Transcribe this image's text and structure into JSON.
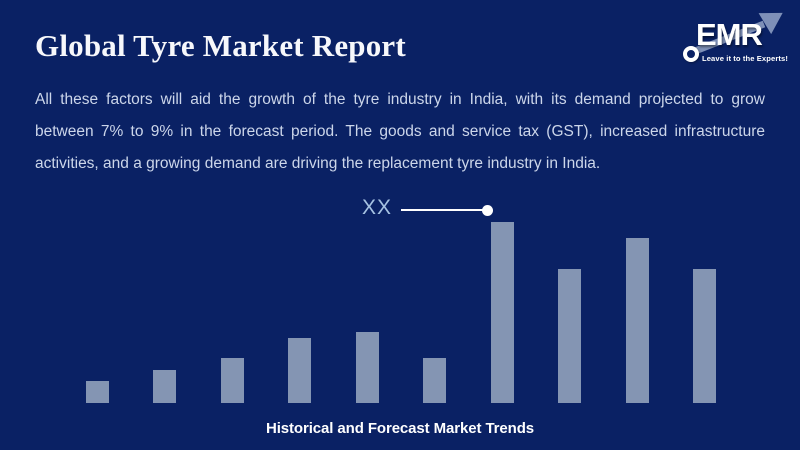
{
  "page": {
    "background_color": "#0a2164",
    "title": "Global Tyre Market Report",
    "paragraph_lines": [
      "All these factors will aid the growth of the tyre industry in India, with its demand projected to grow",
      "between 7% to 9% in the forecast period. The goods and service tax (GST), increased infrastructure",
      "activities, and a growing demand are driving the replacement tyre industry in India."
    ],
    "text_color": "#ccd6ea",
    "title_color": "#f7f8fb"
  },
  "logo": {
    "name": "EMR",
    "tagline": "Leave it to the Experts!",
    "arrow_color": "#7e90b8",
    "text_color": "#ffffff"
  },
  "chart_data": {
    "type": "bar",
    "title": "Historical and Forecast Market Trends",
    "xlabel": "",
    "ylabel": "",
    "categories": [
      "",
      "",
      "",
      "",
      "",
      "",
      "",
      "",
      "",
      ""
    ],
    "values": [
      12,
      18,
      25,
      36,
      39,
      25,
      100,
      74,
      91,
      74
    ],
    "ylim": [
      0,
      100
    ],
    "grid": false,
    "axes_visible": false,
    "legend": "none",
    "bar_color": "#8495b3",
    "annotation": {
      "label": "XX",
      "bar_index": 6,
      "line_color": "#ffffff",
      "label_color": "#a6c2e2"
    }
  }
}
